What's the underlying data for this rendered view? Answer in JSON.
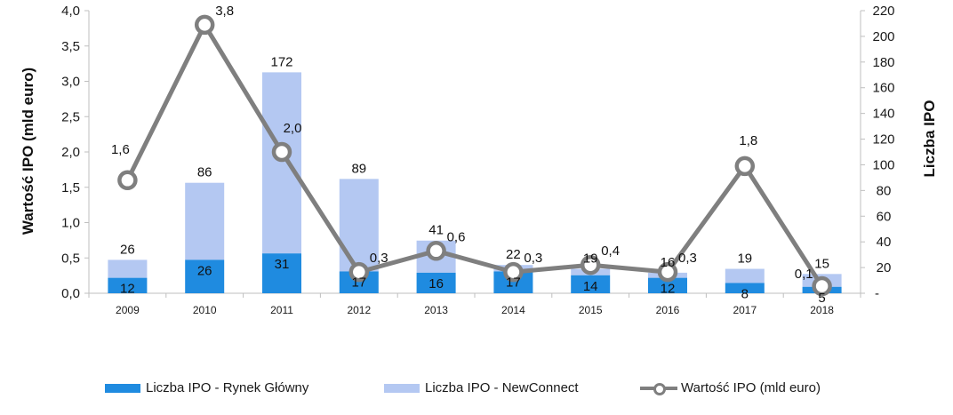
{
  "chart_data": {
    "type": "bar",
    "stacked": true,
    "categories": [
      "2009",
      "2010",
      "2011",
      "2012",
      "2013",
      "2014",
      "2015",
      "2016",
      "2017",
      "2018"
    ],
    "series": [
      {
        "name": "Liczba IPO - Rynek Główny",
        "type": "bar",
        "axis": "right",
        "color": "#1f8be0",
        "values": [
          12,
          26,
          31,
          17,
          16,
          17,
          14,
          12,
          8,
          5
        ]
      },
      {
        "name": "Liczba IPO - NewConnect",
        "type": "bar",
        "axis": "right",
        "color": "#b4c8f2",
        "values": [
          14,
          60,
          141,
          72,
          25,
          5,
          5,
          4,
          11,
          10
        ]
      },
      {
        "name": "Wartość IPO (mld euro)",
        "type": "line",
        "axis": "left",
        "color": "#7f7f7f",
        "values": [
          1.6,
          3.8,
          2.0,
          0.3,
          0.6,
          0.3,
          0.4,
          0.3,
          1.8,
          0.1
        ]
      }
    ],
    "labels": {
      "main": [
        "12",
        "26",
        "31",
        "17",
        "16",
        "17",
        "14",
        "12",
        "8",
        "5"
      ],
      "total": [
        "26",
        "86",
        "172",
        "89",
        "41",
        "22",
        "19",
        "16",
        "19",
        "15"
      ],
      "value": [
        "1,6",
        "3,8",
        "2,0",
        "0,3",
        "0,6",
        "0,3",
        "0,4",
        "0,3",
        "1,8",
        "0,1"
      ]
    },
    "y_left": {
      "label": "Wartość IPO (mld euro)",
      "range": [
        0,
        4
      ],
      "ticks": [
        0,
        0.5,
        1,
        1.5,
        2,
        2.5,
        3,
        3.5,
        4
      ],
      "tick_labels": [
        "0,0",
        "0,5",
        "1,0",
        "1,5",
        "2,0",
        "2,5",
        "3,0",
        "3,5",
        "4,0"
      ]
    },
    "y_right": {
      "label": "Liczba IPO",
      "range": [
        0,
        220
      ],
      "ticks": [
        0,
        20,
        40,
        60,
        80,
        100,
        120,
        140,
        160,
        180,
        200,
        220
      ],
      "tick_labels": [
        "-",
        "20",
        "40",
        "60",
        "80",
        "100",
        "120",
        "140",
        "160",
        "180",
        "200",
        "220"
      ]
    },
    "legend": {
      "position": "bottom"
    }
  }
}
